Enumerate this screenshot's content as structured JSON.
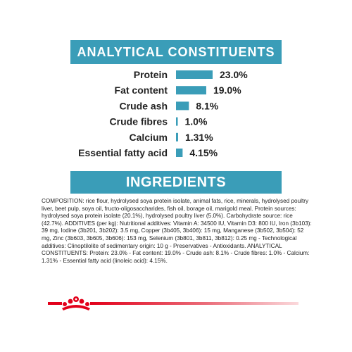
{
  "headings": {
    "analytical": "ANALYTICAL CONSTITUENTS",
    "ingredients": "INGREDIENTS"
  },
  "colors": {
    "accent": "#3a9db8",
    "brand_red": "#e2001a"
  },
  "chart_data": {
    "type": "bar",
    "orientation": "horizontal",
    "categories": [
      "Protein",
      "Fat content",
      "Crude ash",
      "Crude fibres",
      "Calcium",
      "Essential fatty acid"
    ],
    "values": [
      23.0,
      19.0,
      8.1,
      1.0,
      1.31,
      4.15
    ],
    "value_labels": [
      "23.0%",
      "19.0%",
      "8.1%",
      "1.0%",
      "1.31%",
      "4.15%"
    ],
    "unit": "%",
    "title": "ANALYTICAL CONSTITUENTS",
    "xlabel": "",
    "ylabel": "",
    "xlim": [
      0,
      23
    ],
    "grid": false,
    "legend": "none"
  },
  "ingredients": {
    "text": "COMPOSITION: rice flour, hydrolysed soya protein isolate, animal fats, rice, minerals, hydrolysed poultry liver, beet pulp, soya oil, fructo-oligosaccharides, fish oil, borage oil, marigold meal. Protein sources: hydrolysed soya protein isolate (20.1%), hydrolysed poultry liver (5.0%). Carbohydrate source: rice (42.7%). ADDITIVES (per kg): Nutritional additives: Vitamin A: 34500 IU, Vitamin D3: 800 IU, Iron (3b103): 39 mg, Iodine (3b201, 3b202): 3.5 mg, Copper (3b405, 3b406): 15 mg, Manganese (3b502, 3b504): 52 mg, Zinc (3b603, 3b605, 3b606): 153 mg, Selenium (3b801, 3b811, 3b812): 0.25 mg - Technological additives: Clinoptilolite of sedimentary origin: 10 g - Preservatives - Antioxidants. ANALYTICAL CONSTITUENTS: Protein: 23.0% - Fat content: 19.0% - Crude ash: 8.1% - Crude fibres: 1.0% - Calcium: 1.31% - Essential fatty acid (linoleic acid): 4.15%."
  },
  "footer": {
    "logo_icon": "royal-canin-crown-icon"
  }
}
